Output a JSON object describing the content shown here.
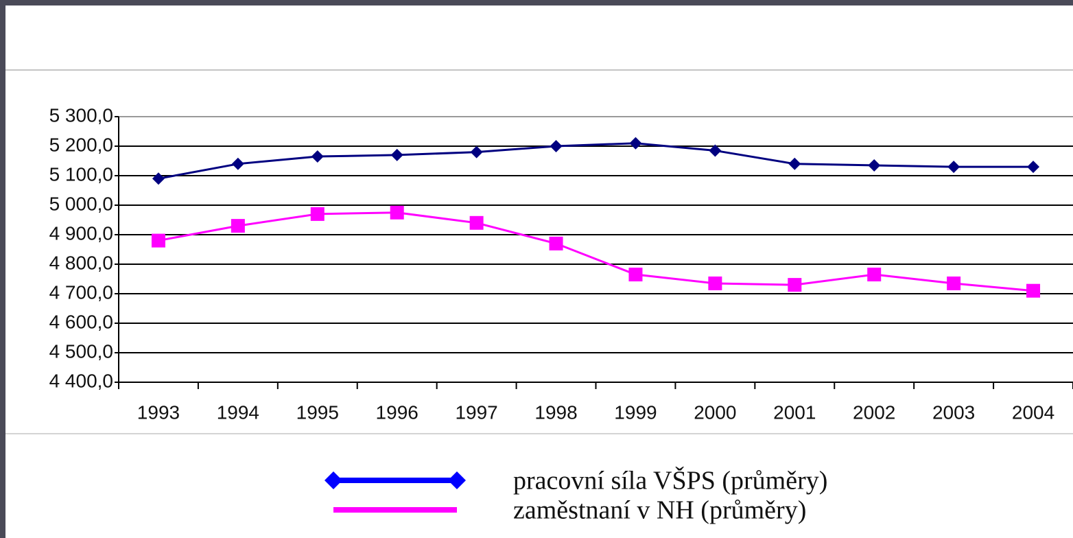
{
  "chart_data": {
    "type": "line",
    "categories": [
      "1993",
      "1994",
      "1995",
      "1996",
      "1997",
      "1998",
      "1999",
      "2000",
      "2001",
      "2002",
      "2003",
      "2004"
    ],
    "series": [
      {
        "name": "pracovní síla VŠPS (průměry)",
        "color": "#000080",
        "marker": "diamond",
        "values": [
          5090,
          5140,
          5165,
          5170,
          5180,
          5200,
          5210,
          5185,
          5140,
          5135,
          5130,
          5130
        ]
      },
      {
        "name": "zaměstnaní v NH (průměry)",
        "color": "#ff00ff",
        "marker": "square",
        "values": [
          4880,
          4930,
          4970,
          4975,
          4940,
          4870,
          4765,
          4735,
          4730,
          4765,
          4735,
          4710
        ]
      }
    ],
    "ylim": [
      4400,
      5300
    ],
    "yticks": [
      {
        "value": 4400,
        "label": "4 400,0"
      },
      {
        "value": 4500,
        "label": "4 500,0"
      },
      {
        "value": 4600,
        "label": "4 600,0"
      },
      {
        "value": 4700,
        "label": "4 700,0"
      },
      {
        "value": 4800,
        "label": "4 800,0"
      },
      {
        "value": 4900,
        "label": "4 900,0"
      },
      {
        "value": 5000,
        "label": "5 000,0"
      },
      {
        "value": 5100,
        "label": "5 100,0"
      },
      {
        "value": 5200,
        "label": "5 200,0"
      },
      {
        "value": 5300,
        "label": "5 300,0"
      }
    ],
    "grid": true,
    "legend": "bottom"
  }
}
